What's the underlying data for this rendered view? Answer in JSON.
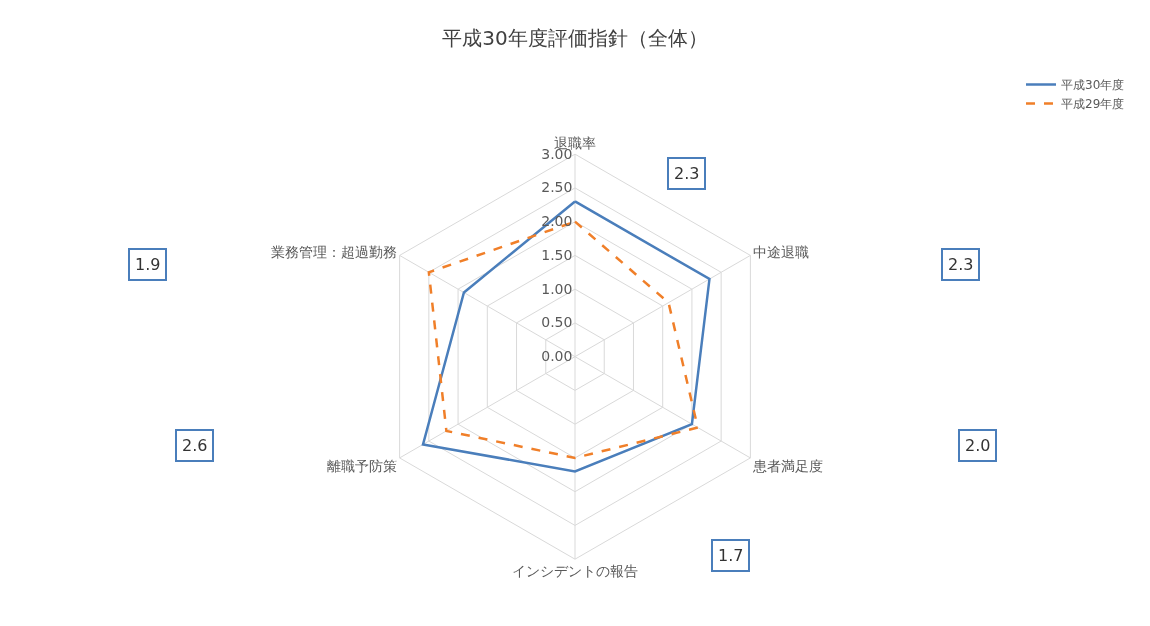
{
  "chart_data": {
    "type": "radar",
    "title": "平成30年度評価指針（全体）",
    "categories": [
      "退職率",
      "中途退職",
      "患者満足度",
      "インシデントの報告",
      "離職予防策",
      "業務管理：超過勤務"
    ],
    "series": [
      {
        "name": "平成30年度",
        "color": "#4a7ebb",
        "line_style": "solid",
        "values": [
          2.3,
          2.3,
          2.0,
          1.7,
          2.6,
          1.9
        ]
      },
      {
        "name": "平成29年度",
        "color": "#f07f29",
        "line_style": "dashed",
        "values": [
          2.0,
          1.6,
          2.1,
          1.5,
          2.2,
          2.5
        ]
      }
    ],
    "ylim": [
      0,
      3
    ],
    "yticks": [
      {
        "value": 0,
        "label": "0.00"
      },
      {
        "value": 0.5,
        "label": "0.50"
      },
      {
        "value": 1,
        "label": "1.00"
      },
      {
        "value": 1.5,
        "label": "1.50"
      },
      {
        "value": 2,
        "label": "2.00"
      },
      {
        "value": 2.5,
        "label": "2.50"
      },
      {
        "value": 3,
        "label": "3.00"
      }
    ],
    "annotations": [
      "2.3",
      "2.3",
      "2.0",
      "1.7",
      "2.6",
      "1.9"
    ],
    "grid": true,
    "legend": "top right",
    "marker": "none"
  }
}
